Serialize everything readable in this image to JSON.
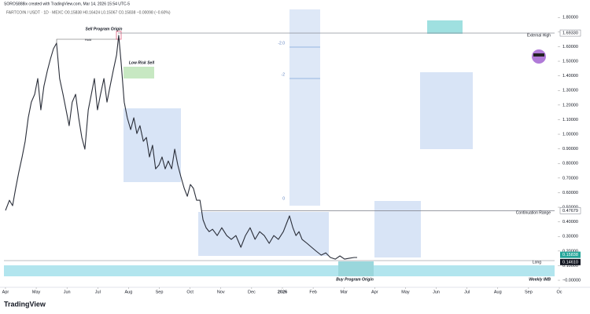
{
  "header": {
    "credit": "SOROS888ix created with TradingView.com, Mar 14, 2026 15:54 UTC-5",
    "symbol": "FARTCOIN / USDT · 1D · MEXC  O0.15838 H0.16424 L0.15067 C0.15838 −0.00098 (−0.60%)"
  },
  "chart_data": {
    "type": "line",
    "x": [
      0,
      0.13,
      0.23,
      0.33,
      0.43,
      0.54,
      0.64,
      0.74,
      0.84,
      0.95,
      1.05,
      1.15,
      1.25,
      1.36,
      1.46,
      1.56,
      1.66,
      1.76,
      1.87,
      1.97,
      2.07,
      2.17,
      2.28,
      2.38,
      2.48,
      2.58,
      2.69,
      2.79,
      2.89,
      2.99,
      3.09,
      3.2,
      3.3,
      3.4,
      3.5,
      3.61,
      3.68,
      3.76,
      3.86,
      3.96,
      4.07,
      4.17,
      4.27,
      4.37,
      4.48,
      4.58,
      4.68,
      4.78,
      4.88,
      4.99,
      5.09,
      5.19,
      5.29,
      5.4,
      5.5,
      5.6,
      5.7,
      5.81,
      5.91,
      6.01,
      6.11,
      6.21,
      6.32,
      6.42,
      6.52,
      6.62,
      6.73,
      6.88,
      7.03,
      7.19,
      7.34,
      7.49,
      7.65,
      7.8,
      7.95,
      8.11,
      8.26,
      8.41,
      8.57,
      8.72,
      8.87,
      9.03,
      9.13,
      9.23,
      9.34,
      9.44,
      9.54,
      9.64,
      9.8,
      9.95,
      10.1,
      10.26,
      10.41,
      10.56,
      10.72,
      10.87,
      11.02,
      11.18,
      11.33,
      11.43
    ],
    "series": [
      {
        "name": "FARTCOIN / USDT",
        "color": "#2a2e39",
        "values": [
          0.478,
          0.548,
          0.511,
          0.629,
          0.737,
          0.844,
          0.952,
          1.113,
          1.22,
          1.274,
          1.382,
          1.167,
          1.328,
          1.435,
          1.516,
          1.586,
          1.624,
          1.382,
          1.274,
          1.167,
          1.059,
          1.22,
          1.274,
          1.113,
          0.978,
          0.898,
          1.167,
          1.274,
          1.382,
          1.167,
          1.274,
          1.382,
          1.22,
          1.328,
          1.435,
          1.543,
          1.677,
          1.489,
          1.22,
          1.113,
          1.032,
          1.113,
          1.005,
          1.059,
          0.952,
          0.978,
          0.844,
          0.925,
          0.763,
          0.79,
          0.844,
          0.763,
          0.817,
          0.763,
          0.898,
          0.79,
          0.71,
          0.629,
          0.575,
          0.656,
          0.629,
          0.548,
          0.548,
          0.414,
          0.36,
          0.333,
          0.349,
          0.306,
          0.36,
          0.306,
          0.28,
          0.306,
          0.226,
          0.306,
          0.36,
          0.28,
          0.333,
          0.306,
          0.253,
          0.306,
          0.28,
          0.333,
          0.387,
          0.441,
          0.36,
          0.306,
          0.333,
          0.28,
          0.253,
          0.226,
          0.199,
          0.172,
          0.188,
          0.156,
          0.145,
          0.167,
          0.145,
          0.151,
          0.156,
          0.156
        ]
      }
    ],
    "xlim": [
      -0.05,
      18
    ],
    "xticks": [
      {
        "value": 0,
        "label": "Apr"
      },
      {
        "value": 1,
        "label": "May"
      },
      {
        "value": 2,
        "label": "Jun"
      },
      {
        "value": 3,
        "label": "Jul"
      },
      {
        "value": 4,
        "label": "Aug"
      },
      {
        "value": 5,
        "label": "Sep"
      },
      {
        "value": 6,
        "label": "Oct"
      },
      {
        "value": 7,
        "label": "Nov"
      },
      {
        "value": 8,
        "label": "Dec"
      },
      {
        "value": 9,
        "label": "2026"
      },
      {
        "value": 10,
        "label": "Feb"
      },
      {
        "value": 11,
        "label": "Mar"
      },
      {
        "value": 12,
        "label": "Apr"
      },
      {
        "value": 13,
        "label": "May"
      },
      {
        "value": 14,
        "label": "Jun"
      },
      {
        "value": 15,
        "label": "Jul"
      },
      {
        "value": 16,
        "label": "Aug"
      },
      {
        "value": 17,
        "label": "Sep"
      },
      {
        "value": 18,
        "label": "Oc"
      }
    ],
    "ylim": [
      -0.059,
      1.855
    ],
    "yticks": [
      {
        "value": 0,
        "label": "−0.00000"
      },
      {
        "value": 0.1,
        "label": "0.10000"
      },
      {
        "value": 0.2,
        "label": "0.20000"
      },
      {
        "value": 0.3,
        "label": "0.30000"
      },
      {
        "value": 0.4,
        "label": "0.40000"
      },
      {
        "value": 0.5,
        "label": "0.50000"
      },
      {
        "value": 0.6,
        "label": "0.60000"
      },
      {
        "value": 0.7,
        "label": "0.70000"
      },
      {
        "value": 0.8,
        "label": "0.80000"
      },
      {
        "value": 0.9,
        "label": "0.90000"
      },
      {
        "value": 1,
        "label": "1.00000"
      },
      {
        "value": 1.1,
        "label": "1.10000"
      },
      {
        "value": 1.2,
        "label": "1.20000"
      },
      {
        "value": 1.3,
        "label": "1.30000"
      },
      {
        "value": 1.4,
        "label": "1.40000"
      },
      {
        "value": 1.5,
        "label": "1.50000"
      },
      {
        "value": 1.6,
        "label": "1.60000"
      },
      {
        "value": 1.7,
        "label": "1.70000"
      },
      {
        "value": 1.8,
        "label": "1.80000"
      }
    ],
    "levels": [
      {
        "value": 1.6933,
        "label": "1.69330",
        "name": "External High",
        "color": "#787b86"
      },
      {
        "value": 0.47679,
        "label": "0.47679",
        "name": "Continuation Range",
        "color": "#787b86"
      }
    ],
    "price_tags": [
      {
        "value": 0.15838,
        "label": "0.15838",
        "color": "#26a69a"
      },
      {
        "value": 0.1461,
        "label": "0.14610",
        "color": "#131722"
      }
    ],
    "annotations": [
      "Sell Program Origin",
      "Hold",
      "Low Risk Sell",
      "Buy Program Origin",
      "Long",
      "Weekly IMB",
      "-2.0",
      "-2",
      "0"
    ]
  },
  "footer": {
    "brand": "TradingView"
  }
}
